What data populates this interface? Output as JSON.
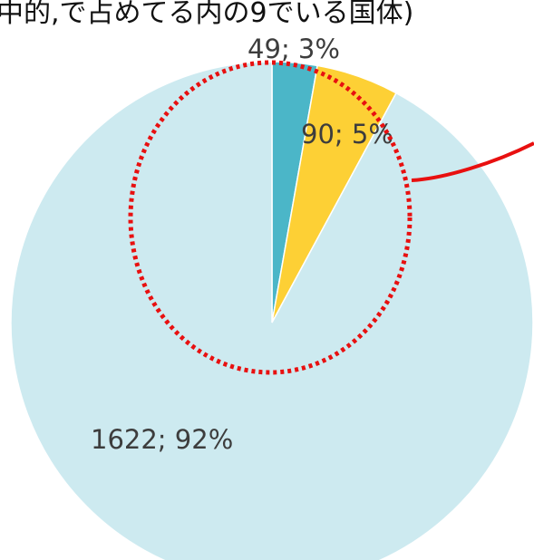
{
  "header_fragment": "中的,で占めてる内の9でいる国体)",
  "chart_data": {
    "type": "pie",
    "start_angle_deg": 0,
    "direction": "clockwise",
    "slices": [
      {
        "value": 49,
        "label": "49; 3%",
        "color": "#4bb6c8"
      },
      {
        "value": 90,
        "label": "90; 5%",
        "color": "#fdd035"
      },
      {
        "value": 1622,
        "label": "1622; 92%",
        "color": "#cdeaf0"
      }
    ],
    "annotation": {
      "shape": "dotted-ellipse",
      "color": "#e81010",
      "connector": "curved-line",
      "connector_color": "#e81010"
    }
  }
}
